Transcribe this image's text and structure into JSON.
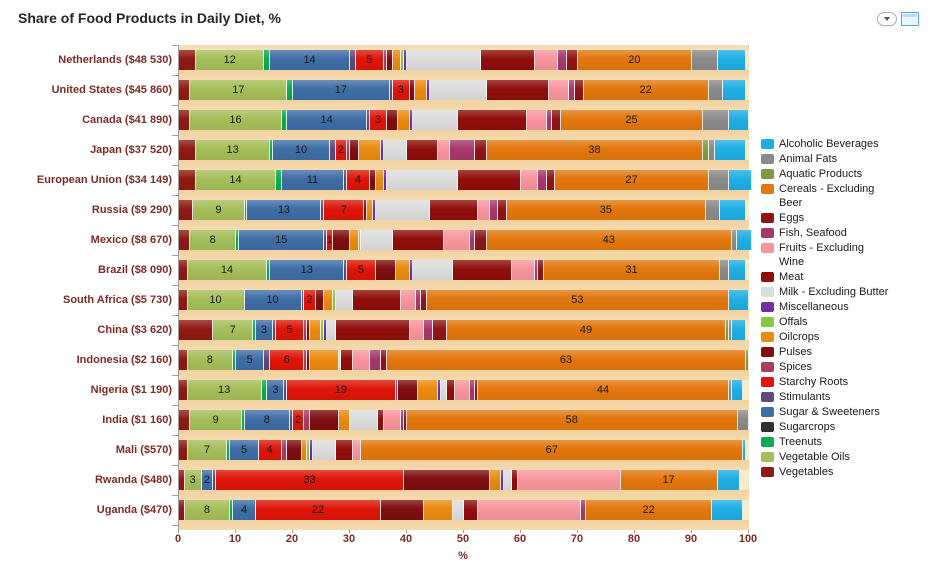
{
  "title": "Share of Food Products in Daily Diet, %",
  "window_controls": {
    "collapse_button": "chevron-down",
    "window_button": "window"
  },
  "x_axis": {
    "label": "%",
    "min": 0,
    "max": 100,
    "ticks": [
      0,
      10,
      20,
      30,
      40,
      50,
      60,
      70,
      80,
      90,
      100
    ]
  },
  "colors": {
    "axis_text": "#7C2B24",
    "plot_lane": "#FAE9C9",
    "plot_gap": "#F0D0A0",
    "title_text": "#262626"
  },
  "legend": {
    "position": "right",
    "items": [
      {
        "label": "Alcoholic Beverages",
        "color": "#1FAEE4"
      },
      {
        "label": "Animal Fats",
        "color": "#8A8A8A"
      },
      {
        "label": "Aquatic Products",
        "color": "#7E9B44"
      },
      {
        "label": "Cereals - Excluding\nBeer",
        "color": "#E2770D"
      },
      {
        "label": "Eggs",
        "color": "#8E1616"
      },
      {
        "label": "Fish, Seafood",
        "color": "#A6396B"
      },
      {
        "label": "Fruits - Excluding\nWine",
        "color": "#F8949E"
      },
      {
        "label": "Meat",
        "color": "#8F0E0B"
      },
      {
        "label": "Milk - Excluding Butter",
        "color": "#DCDCDC"
      },
      {
        "label": "Miscellaneous",
        "color": "#7030A0"
      },
      {
        "label": "Offals",
        "color": "#8CC63E"
      },
      {
        "label": "Oilcrops",
        "color": "#EA8A0F"
      },
      {
        "label": "Pulses",
        "color": "#7E0E11"
      },
      {
        "label": "Spices",
        "color": "#A53E63"
      },
      {
        "label": "Starchy Roots",
        "color": "#DE1508"
      },
      {
        "label": "Stimulants",
        "color": "#5F4A7B"
      },
      {
        "label": "Sugar & Sweeteners",
        "color": "#3E6DA5"
      },
      {
        "label": "Sugarcrops",
        "color": "#323032"
      },
      {
        "label": "Treenuts",
        "color": "#0AAB51"
      },
      {
        "label": "Vegetable Oils",
        "color": "#A4BE59"
      },
      {
        "label": "Vegetables",
        "color": "#8F1A14"
      }
    ]
  },
  "chart_data": {
    "type": "bar",
    "stacked": true,
    "orientation": "horizontal",
    "title": "Share of Food Products in Daily Diet, %",
    "xlabel": "%",
    "ylabel": "",
    "xlim": [
      0,
      100
    ],
    "grid": false,
    "legend_position": "right",
    "labeled_series": [
      "Vegetable Oils",
      "Sugar & Sweeteners",
      "Starchy Roots",
      "Cereals - Excluding Beer"
    ],
    "categories": [
      "Netherlands ($48 530)",
      "United States ($45 860)",
      "Canada ($41 890)",
      "Japan ($37 520)",
      "European Union ($34 149)",
      "Russia ($9 290)",
      "Mexico ($8 670)",
      "Brazil ($8 090)",
      "South Africa ($5 730)",
      "China ($3 620)",
      "Indonesia ($2 160)",
      "Nigeria ($1 190)",
      "India ($1 160)",
      "Mali ($570)",
      "Rwanda ($480)",
      "Uganda ($470)"
    ],
    "series": [
      {
        "name": "Vegetables",
        "color": "#8F1A14",
        "values": [
          3,
          2,
          2,
          3,
          3,
          2.5,
          2,
          1.5,
          1.5,
          6,
          1.5,
          1.5,
          2,
          1.5,
          1,
          1
        ]
      },
      {
        "name": "Vegetable Oils",
        "color": "#A4BE59",
        "values": [
          12,
          17,
          16,
          13,
          14,
          9,
          8,
          14,
          10,
          7,
          8,
          13,
          9,
          7,
          3,
          8
        ]
      },
      {
        "name": "Treenuts",
        "color": "#0AAB51",
        "values": [
          1,
          1,
          1,
          0.5,
          1,
          0.5,
          0.5,
          0.5,
          0,
          0.5,
          0.5,
          1,
          0.5,
          0.5,
          0,
          0.5
        ]
      },
      {
        "name": "Sugarcrops",
        "color": "#323032",
        "values": [
          0,
          0,
          0,
          0,
          0,
          0,
          0,
          0,
          0,
          0,
          0,
          0,
          0,
          0,
          0,
          0
        ]
      },
      {
        "name": "Sugar & Sweeteners",
        "color": "#3E6DA5",
        "values": [
          14,
          17,
          14,
          10,
          11,
          13,
          15,
          13,
          10,
          3,
          5,
          3,
          8,
          5,
          2,
          4
        ]
      },
      {
        "name": "Stimulants",
        "color": "#5F4A7B",
        "values": [
          1,
          0.5,
          0.5,
          1,
          0.5,
          0.5,
          0.5,
          0.5,
          0.5,
          0.5,
          1,
          0.5,
          0.5,
          0,
          0.5,
          0
        ]
      },
      {
        "name": "Starchy Roots",
        "color": "#DE1508",
        "values": [
          5,
          3,
          3,
          2,
          4,
          7,
          1,
          5,
          2,
          5,
          6,
          19,
          2,
          4,
          33,
          22
        ]
      },
      {
        "name": "Spices",
        "color": "#A53E63",
        "values": [
          0.5,
          0,
          0,
          0.5,
          0,
          0,
          0,
          0,
          0,
          0.5,
          0.5,
          0.5,
          1,
          1,
          0,
          0
        ]
      },
      {
        "name": "Pulses",
        "color": "#7E0E11",
        "values": [
          1,
          1,
          2,
          1.5,
          1,
          0.5,
          3,
          3.5,
          1.5,
          0.5,
          0.5,
          3.5,
          5,
          2.5,
          15,
          7.5
        ]
      },
      {
        "name": "Oilcrops",
        "color": "#EA8A0F",
        "values": [
          1.5,
          2,
          2,
          4,
          1.5,
          1,
          1.5,
          2.5,
          1.5,
          2,
          5,
          3.5,
          2,
          1,
          2,
          5
        ]
      },
      {
        "name": "Offals",
        "color": "#8CC63E",
        "values": [
          0.5,
          0,
          0,
          0,
          0,
          0,
          0.5,
          0,
          0.5,
          0.5,
          0,
          0,
          0,
          0.5,
          0,
          0
        ]
      },
      {
        "name": "Miscellaneous",
        "color": "#7030A0",
        "values": [
          0.5,
          0.5,
          0.5,
          0.5,
          0.5,
          0.5,
          0,
          0.5,
          0,
          0.5,
          0,
          0.5,
          0,
          0.5,
          0.5,
          0
        ]
      },
      {
        "name": "Milk - Excluding Butter",
        "color": "#DCDCDC",
        "values": [
          13,
          10,
          8,
          4,
          12.5,
          9.5,
          5.5,
          7,
          3,
          1.5,
          0.5,
          1,
          5,
          4,
          1.5,
          2
        ]
      },
      {
        "name": "Meat",
        "color": "#8F0E0B",
        "values": [
          9.5,
          11,
          12,
          5.5,
          11,
          8.5,
          9,
          10.5,
          8.5,
          13,
          2,
          1.5,
          1,
          3,
          1,
          2.5
        ]
      },
      {
        "name": "Fruits - Excluding Wine",
        "color": "#F8949E",
        "values": [
          4,
          3.5,
          3.5,
          2,
          3,
          2,
          4.5,
          4,
          2.5,
          2.5,
          3,
          2.5,
          3,
          1.5,
          18,
          18
        ]
      },
      {
        "name": "Fish, Seafood",
        "color": "#A6396B",
        "values": [
          1.5,
          1,
          1,
          4.5,
          1.5,
          1.5,
          1,
          0.5,
          1,
          1.5,
          2,
          1,
          0.5,
          0,
          0,
          1
        ]
      },
      {
        "name": "Eggs",
        "color": "#8E1616",
        "values": [
          2,
          1.5,
          1.5,
          2,
          1.5,
          1.5,
          2,
          1,
          1,
          2.5,
          1,
          0.5,
          0.5,
          0,
          0,
          0
        ]
      },
      {
        "name": "Cereals - Excluding Beer",
        "color": "#E2770D",
        "values": [
          20,
          22,
          25,
          38,
          27,
          35,
          43,
          31,
          53,
          49,
          63,
          44,
          58,
          67,
          17,
          22
        ]
      },
      {
        "name": "Aquatic Products",
        "color": "#7E9B44",
        "values": [
          0,
          0,
          0,
          1,
          0,
          0,
          0,
          0,
          0,
          0.5,
          0.5,
          0,
          0,
          0,
          0,
          0
        ]
      },
      {
        "name": "Animal Fats",
        "color": "#8A8A8A",
        "values": [
          4.5,
          2.5,
          4.5,
          1,
          3.5,
          2.5,
          1,
          1.5,
          0,
          0.5,
          0,
          0.5,
          2,
          0,
          0,
          0
        ]
      },
      {
        "name": "Alcoholic Beverages",
        "color": "#1FAEE4",
        "values": [
          5,
          4,
          3.5,
          5.5,
          4,
          4.5,
          2.5,
          3,
          3.5,
          2.5,
          0,
          2,
          0,
          0.5,
          4,
          5.5
        ]
      }
    ]
  }
}
